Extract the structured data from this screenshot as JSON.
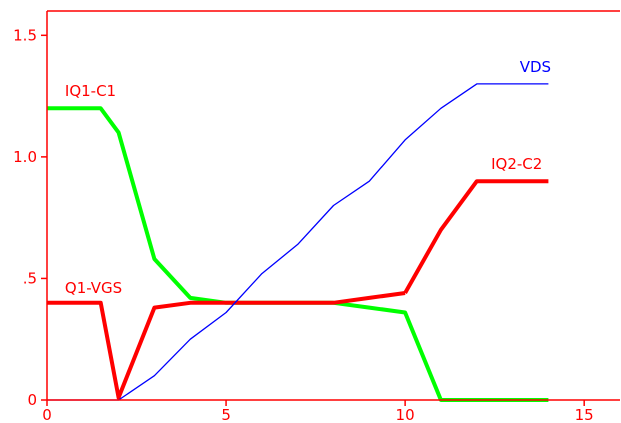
{
  "chart_data": {
    "type": "line",
    "xlim": [
      0,
      16
    ],
    "ylim": [
      0,
      1.6
    ],
    "x_ticks": [
      {
        "value": 0,
        "label": "0"
      },
      {
        "value": 5,
        "label": "5"
      },
      {
        "value": 10,
        "label": "10"
      },
      {
        "value": 15,
        "label": "15"
      }
    ],
    "y_ticks": [
      {
        "value": 0,
        "label": "0"
      },
      {
        "value": 0.5,
        "label": ".5"
      },
      {
        "value": 1.0,
        "label": "1.0"
      },
      {
        "value": 1.5,
        "label": "1.5"
      }
    ],
    "grid": false,
    "axis_color": "#ff0000",
    "series": [
      {
        "name": "IQ1-C1",
        "color": "#00ff00",
        "width": "thick",
        "label_anchor": {
          "x": 0.5,
          "y": 1.25
        },
        "points": [
          [
            0,
            1.2
          ],
          [
            1.5,
            1.2
          ],
          [
            2,
            1.1
          ],
          [
            3,
            0.58
          ],
          [
            4,
            0.42
          ],
          [
            5,
            0.4
          ],
          [
            6,
            0.4
          ],
          [
            7,
            0.4
          ],
          [
            8,
            0.4
          ],
          [
            9,
            0.38
          ],
          [
            10,
            0.36
          ],
          [
            11,
            0.0
          ],
          [
            12,
            0.0
          ],
          [
            13,
            0.0
          ],
          [
            14,
            0.0
          ]
        ]
      },
      {
        "name": "Q1-VGS",
        "color": "#ff0000",
        "width": "thick",
        "label_anchor": {
          "x": 0.5,
          "y": 0.44
        },
        "points": [
          [
            0,
            0.4
          ],
          [
            1.5,
            0.4
          ],
          [
            2,
            0.01
          ],
          [
            3,
            0.38
          ],
          [
            4,
            0.4
          ],
          [
            5,
            0.4
          ],
          [
            6,
            0.4
          ],
          [
            7,
            0.4
          ],
          [
            8,
            0.4
          ],
          [
            9,
            0.42
          ],
          [
            10,
            0.44
          ]
        ]
      },
      {
        "name": "IQ2-C2",
        "color": "#ff0000",
        "width": "thick",
        "label_anchor": {
          "x": 12.4,
          "y": 0.95
        },
        "points": [
          [
            10,
            0.44
          ],
          [
            11,
            0.7
          ],
          [
            12,
            0.9
          ],
          [
            13,
            0.9
          ],
          [
            14,
            0.9
          ]
        ]
      },
      {
        "name": "VDS",
        "color": "#0000ff",
        "width": "thin",
        "label_anchor": {
          "x": 13.2,
          "y": 1.35
        },
        "points": [
          [
            0,
            0.0
          ],
          [
            1,
            0.0
          ],
          [
            2,
            0.0
          ],
          [
            3,
            0.1
          ],
          [
            4,
            0.25
          ],
          [
            5,
            0.36
          ],
          [
            6,
            0.52
          ],
          [
            7,
            0.64
          ],
          [
            8,
            0.8
          ],
          [
            9,
            0.9
          ],
          [
            10,
            1.07
          ],
          [
            11,
            1.2
          ],
          [
            12,
            1.3
          ],
          [
            13,
            1.3
          ],
          [
            14,
            1.3
          ]
        ]
      }
    ]
  }
}
